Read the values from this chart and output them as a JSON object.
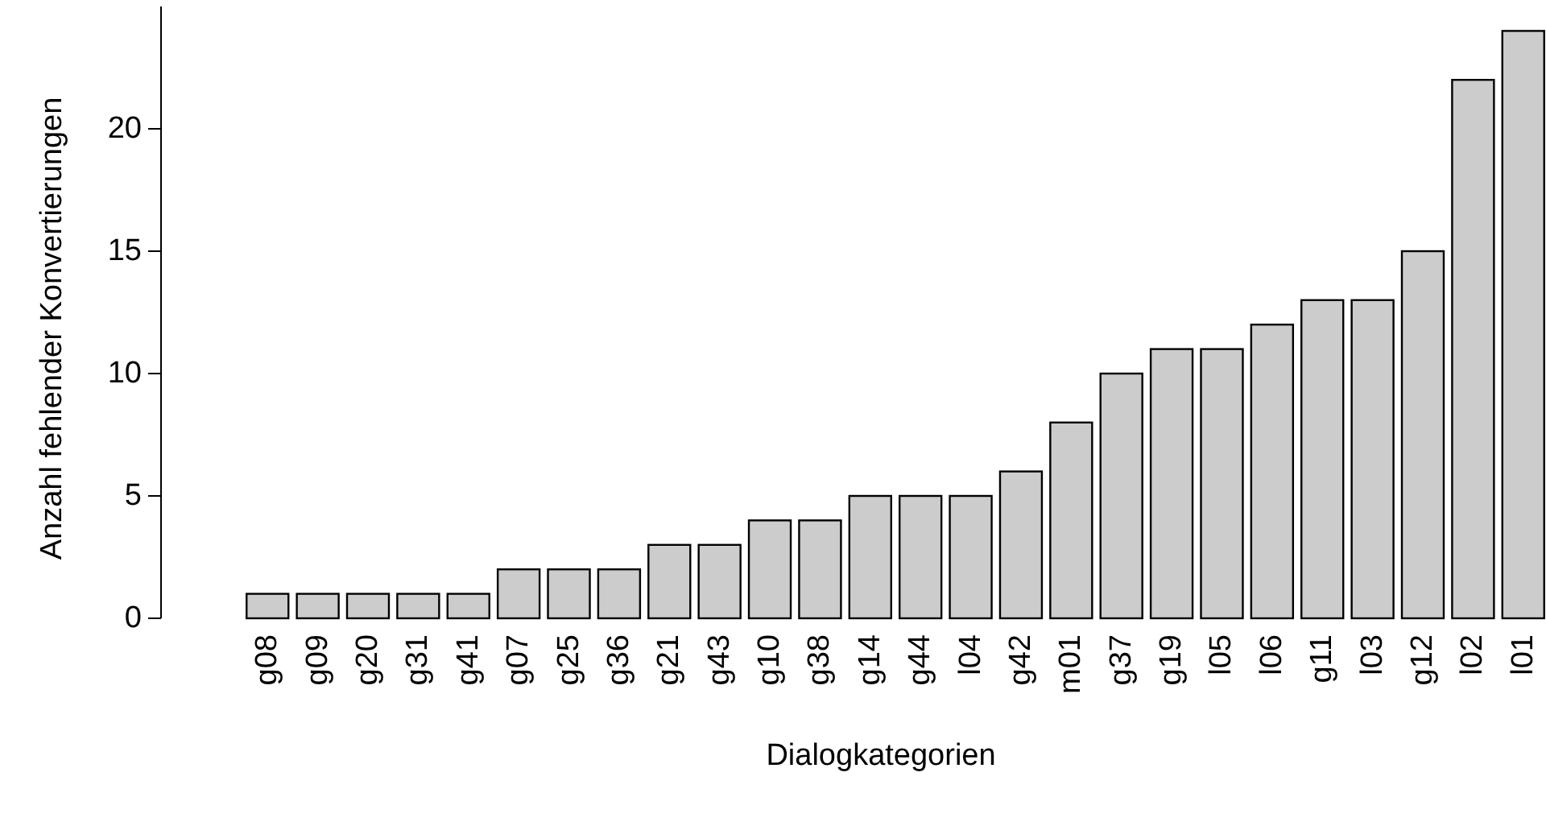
{
  "chart_data": {
    "type": "bar",
    "xlabel": "Dialogkategorien",
    "ylabel": "Anzahl fehlender Konvertierungen",
    "categories": [
      "g08",
      "g09",
      "g20",
      "g31",
      "g41",
      "g07",
      "g25",
      "g36",
      "g21",
      "g43",
      "g10",
      "g38",
      "g14",
      "g44",
      "l04",
      "g42",
      "m01",
      "g37",
      "g19",
      "l05",
      "l06",
      "g11",
      "l03",
      "g12",
      "l02",
      "l01"
    ],
    "values": [
      1,
      1,
      1,
      1,
      1,
      2,
      2,
      2,
      3,
      3,
      4,
      4,
      5,
      5,
      5,
      6,
      8,
      10,
      11,
      11,
      12,
      13,
      13,
      15,
      22,
      24
    ],
    "color": "#cccccc",
    "ylim": [
      0,
      25
    ],
    "yticks": [
      0,
      5,
      10,
      15,
      20
    ],
    "grid": false
  }
}
